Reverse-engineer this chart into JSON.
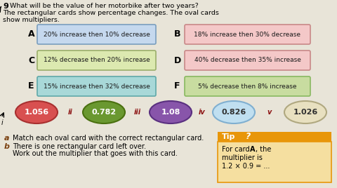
{
  "title_line1": "What will be the value of her motorbike after two years?",
  "title_line2": "The rectangular cards show percentage changes. The oval cards",
  "title_line3": "show multipliers.",
  "question_num": "9",
  "rect_cards": [
    {
      "label": "A",
      "text": "20% increase then 10% decrease",
      "col": 0,
      "row": 0,
      "bg": "#c5d8ee",
      "border": "#7a9ebe"
    },
    {
      "label": "C",
      "text": "12% decrease then 20% increase",
      "col": 0,
      "row": 1,
      "bg": "#dce9b0",
      "border": "#9aaf6a"
    },
    {
      "label": "E",
      "text": "15% increase then 32% decrease",
      "col": 0,
      "row": 2,
      "bg": "#a8d8d8",
      "border": "#5fa8a8"
    },
    {
      "label": "B",
      "text": "18% increase then 30% decrease",
      "col": 1,
      "row": 0,
      "bg": "#f4c8c8",
      "border": "#c88888"
    },
    {
      "label": "D",
      "text": "40% decrease then 35% increase",
      "col": 1,
      "row": 1,
      "bg": "#f4c8c8",
      "border": "#c88888"
    },
    {
      "label": "F",
      "text": "5% decrease then 8% increase",
      "col": 1,
      "row": 2,
      "bg": "#c8dca0",
      "border": "#88b860"
    }
  ],
  "oval_cards": [
    {
      "label": "i",
      "value": "1.056",
      "bg": "#d85050",
      "border": "#a83030",
      "text_color": "white"
    },
    {
      "label": "ii",
      "value": "0.782",
      "bg": "#6a9830",
      "border": "#4a7010",
      "text_color": "white"
    },
    {
      "label": "iii",
      "value": "1.08",
      "bg": "#8855aa",
      "border": "#5a3080",
      "text_color": "white"
    },
    {
      "label": "iv",
      "value": "0.826",
      "bg": "#c0dff0",
      "border": "#80afd0",
      "text_color": "#303030"
    },
    {
      "label": "v",
      "value": "1.026",
      "bg": "#e8e0c0",
      "border": "#b0a880",
      "text_color": "#303030"
    }
  ],
  "part_a_label": "a",
  "part_a_text": "Match each oval card with the correct rectangular card.",
  "part_b_label": "b",
  "part_b_line1": "There is one rectangular card left over.",
  "part_b_line2": "Work out the multiplier that goes with this card.",
  "tip_title": "Tip",
  "tip_question": "?",
  "tip_line1": "For card ",
  "tip_line1b": "A",
  "tip_line1c": ", the",
  "tip_line2": "multiplier is",
  "tip_line3": "1.2 × 0.9 = ...",
  "tip_bg": "#e8960a",
  "tip_text_bg": "#f5dfa0",
  "bg_color": "#e8e4d8"
}
